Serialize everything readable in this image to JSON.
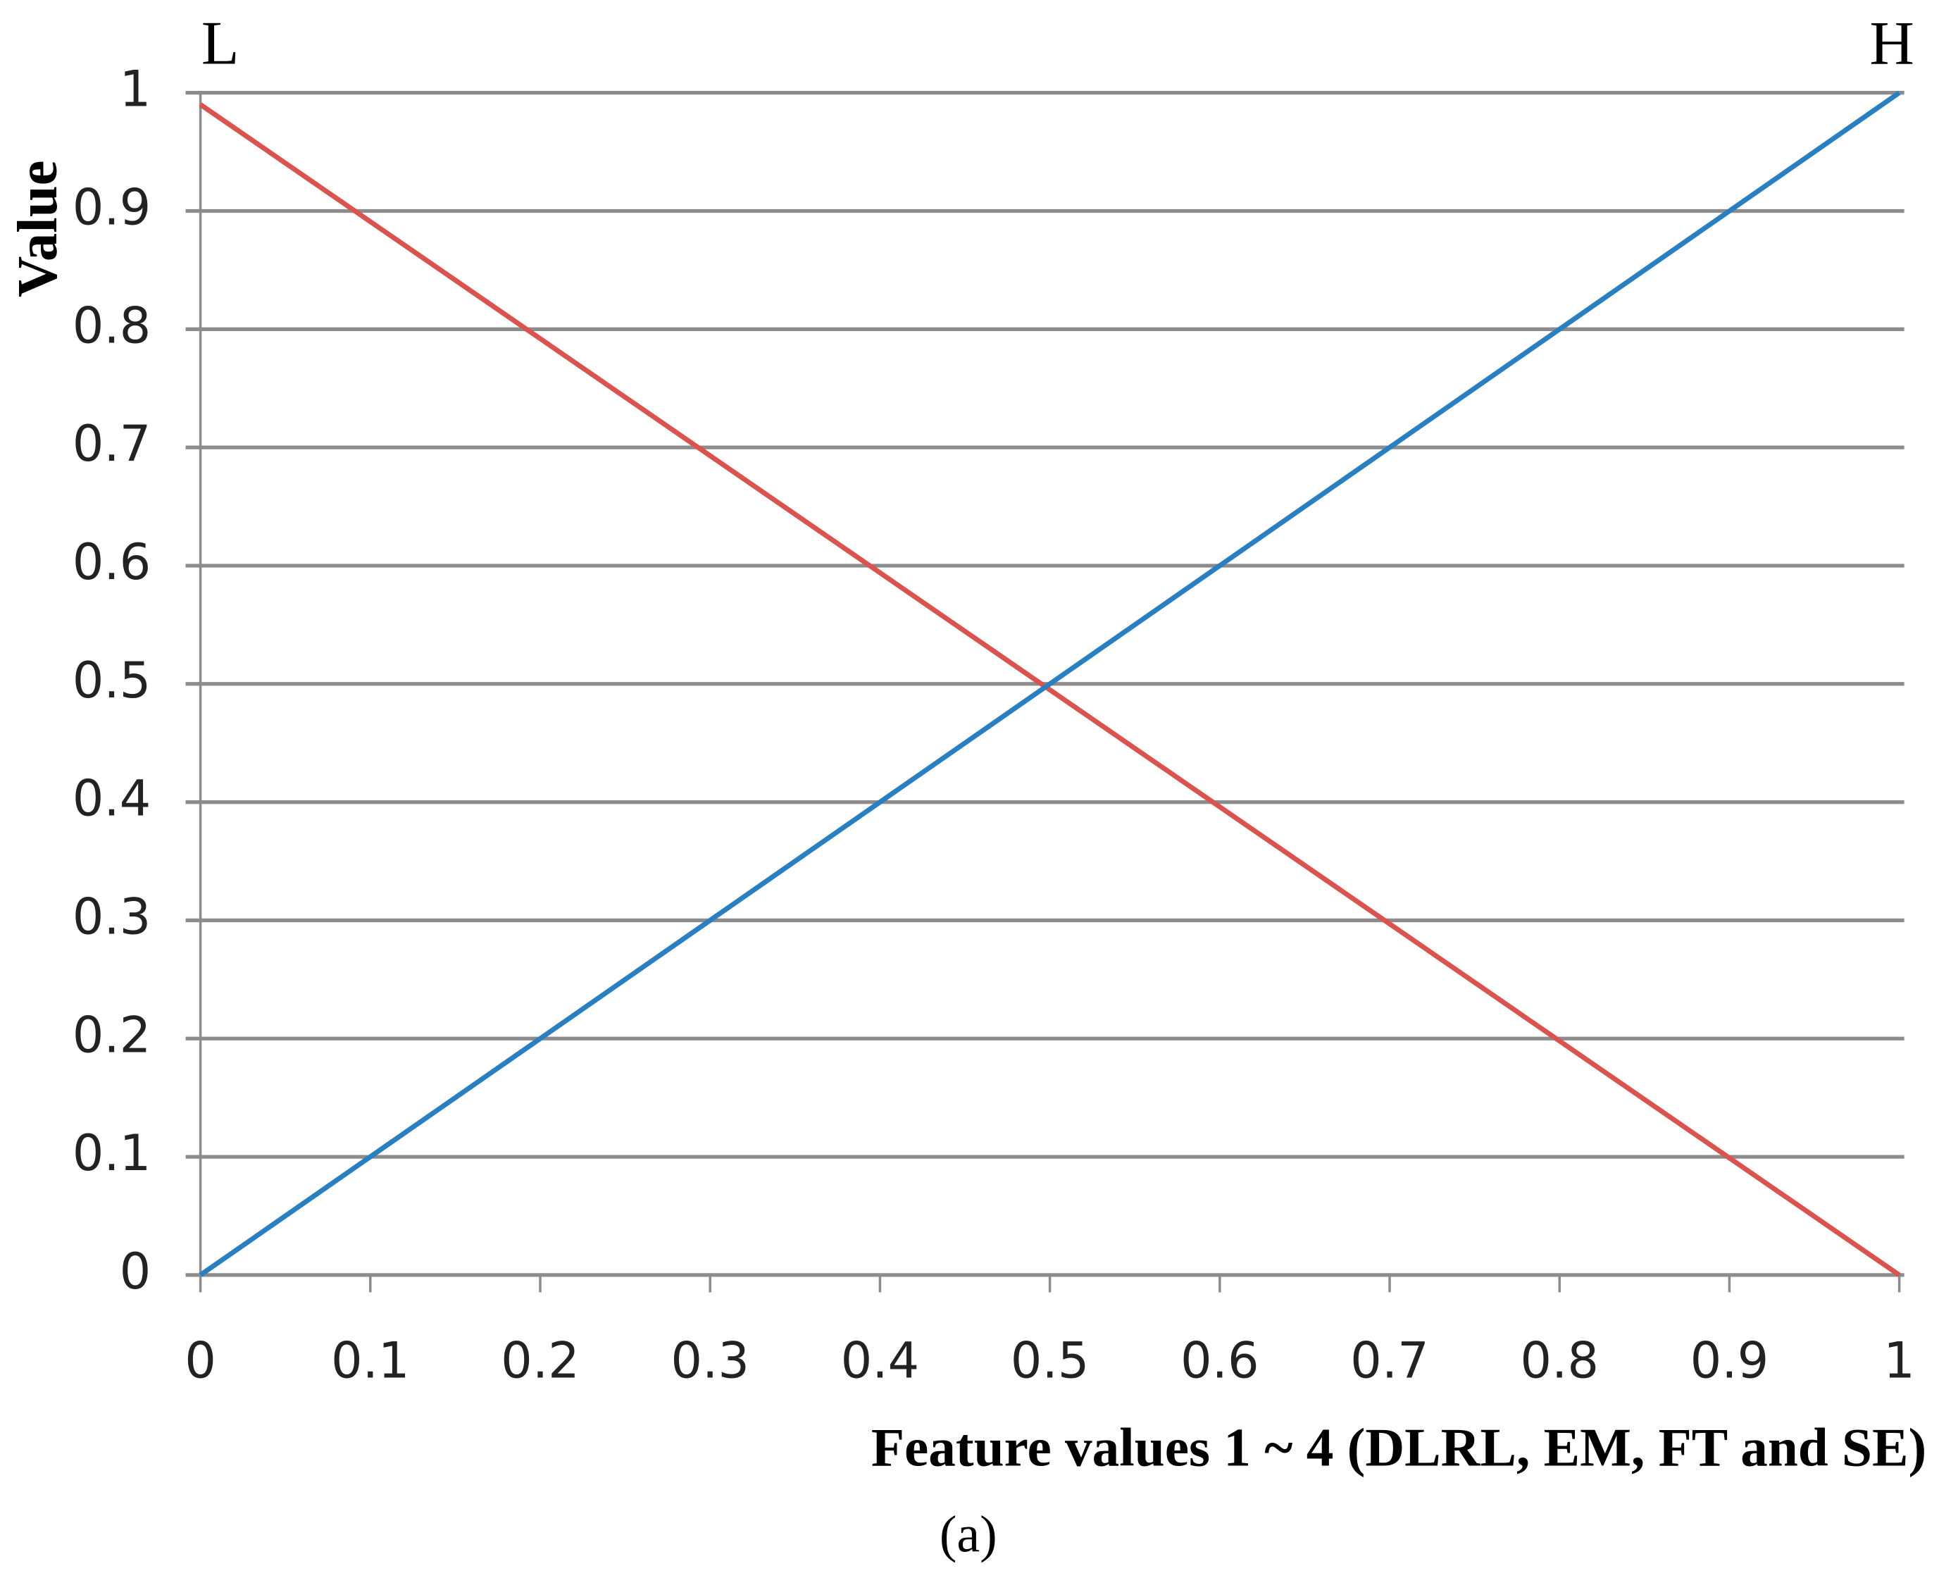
{
  "chart_data": {
    "type": "line",
    "x": [
      0,
      1
    ],
    "series": [
      {
        "name": "L",
        "color": "#d9534f",
        "values": [
          0.99,
          0
        ]
      },
      {
        "name": "H",
        "color": "#2a7fc0",
        "values": [
          0,
          1
        ]
      }
    ],
    "xlim": [
      0,
      1
    ],
    "xticks": [
      0,
      0.1,
      0.2,
      0.3,
      0.4,
      0.5,
      0.6,
      0.7,
      0.8,
      0.9,
      1
    ],
    "ylim": [
      0,
      1
    ],
    "yticks": [
      0,
      0.1,
      0.2,
      0.3,
      0.4,
      0.5,
      0.6,
      0.7,
      0.8,
      0.9,
      1
    ],
    "grid": true,
    "y_label": "Value",
    "x_label": "Feature values 1 ~ 4 (DLRL, EM, FT and SE)",
    "caption": "(a)"
  }
}
